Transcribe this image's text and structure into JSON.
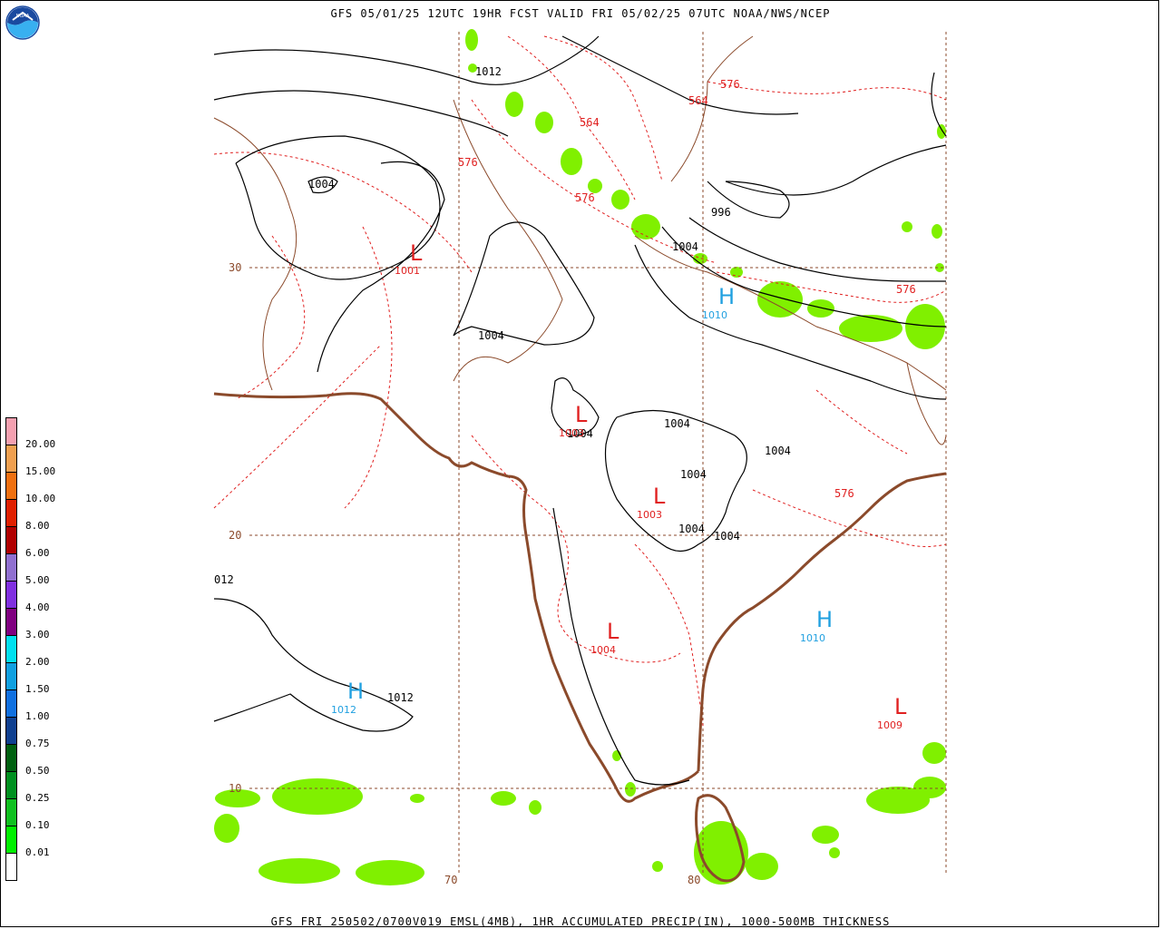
{
  "header": {
    "title": "GFS 05/01/25 12UTC 19HR FCST VALID FRI 05/02/25 07UTC NOAA/NWS/NCEP"
  },
  "footer": {
    "caption": "GFS FRI 250502/0700V019 EMSL(4MB), 1HR ACCUMULATED PRECIP(IN), 1000-500MB THICKNESS"
  },
  "logo": {
    "label": "NOAA",
    "icon": "noaa-logo-icon"
  },
  "legend": {
    "unit": "in",
    "bins": [
      {
        "label": "20.00",
        "color": "#f4a0b0"
      },
      {
        "label": "15.00",
        "color": "#f0a050"
      },
      {
        "label": "10.00",
        "color": "#f07010"
      },
      {
        "label": "8.00",
        "color": "#e02000"
      },
      {
        "label": "6.00",
        "color": "#b00000"
      },
      {
        "label": "5.00",
        "color": "#9070d0"
      },
      {
        "label": "4.00",
        "color": "#8030e0"
      },
      {
        "label": "3.00",
        "color": "#800080"
      },
      {
        "label": "2.00",
        "color": "#00e0f0"
      },
      {
        "label": "1.50",
        "color": "#10a0e0"
      },
      {
        "label": "1.00",
        "color": "#1070e0"
      },
      {
        "label": "0.75",
        "color": "#104090"
      },
      {
        "label": "0.50",
        "color": "#006010"
      },
      {
        "label": "0.25",
        "color": "#009020"
      },
      {
        "label": "0.10",
        "color": "#10c020"
      },
      {
        "label": "0.01",
        "color": "#00f000"
      },
      {
        "label": "",
        "color": "#ffffff"
      }
    ]
  },
  "map": {
    "colors": {
      "coast": "#8b4a2b",
      "border": "#8b4a2b",
      "isobar": "#000000",
      "thickness": "#e02020",
      "low": "#e02020",
      "high": "#20a0e0",
      "precip": "#80f000",
      "grid": "#8b4a2b"
    },
    "lat_labels": [
      "30",
      "20",
      "10"
    ],
    "lon_labels": [
      "70",
      "80"
    ],
    "pressure_centers": [
      {
        "type": "L",
        "value": "1001"
      },
      {
        "type": "L",
        "value": "1003"
      },
      {
        "type": "L",
        "value": "1003"
      },
      {
        "type": "L",
        "value": "1004"
      },
      {
        "type": "L",
        "value": "1009"
      },
      {
        "type": "H",
        "value": "1010"
      },
      {
        "type": "H",
        "value": "1010"
      },
      {
        "type": "H",
        "value": "1012"
      }
    ],
    "isobar_labels": [
      "1012",
      "1004",
      "1004",
      "996",
      "1004",
      "1004",
      "1004",
      "1004",
      "1004",
      "1004",
      "1004",
      "012",
      "1012"
    ],
    "thickness_labels": [
      "576",
      "564",
      "564",
      "576",
      "576",
      "576",
      "576"
    ]
  }
}
